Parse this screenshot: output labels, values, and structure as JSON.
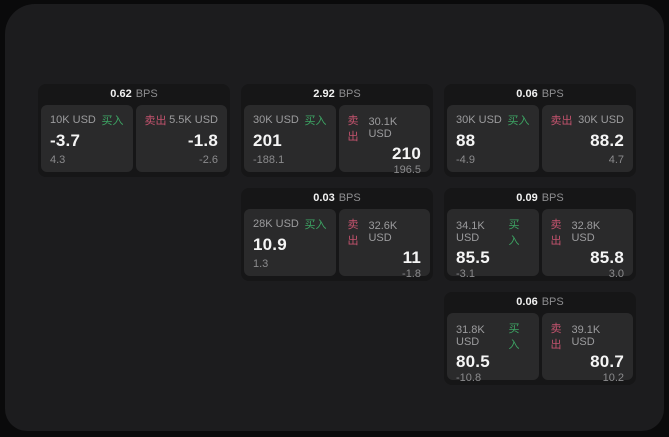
{
  "labels": {
    "bps_unit": "BPS",
    "buy": "买入",
    "sell": "卖出"
  },
  "colors": {
    "page_background": "#0a0a0b",
    "window_background": "#1c1c1e",
    "card_background": "#161617",
    "panel_background": "#2a2a2b",
    "buy_green": "#3da564",
    "sell_red": "#c4536e",
    "text_primary": "#f5f5f5",
    "text_secondary": "#9c9c9e"
  },
  "cards": [
    {
      "bps": "0.62",
      "buy": {
        "amount": "10K USD",
        "price": "-3.7",
        "change": "4.3"
      },
      "sell": {
        "amount": "5.5K USD",
        "price": "-1.8",
        "change": "-2.6"
      }
    },
    {
      "bps": "2.92",
      "buy": {
        "amount": "30K USD",
        "price": "201",
        "change": "-188.1"
      },
      "sell": {
        "amount": "30.1K USD",
        "price": "210",
        "change": "196.5"
      }
    },
    {
      "bps": "0.06",
      "buy": {
        "amount": "30K USD",
        "price": "88",
        "change": "-4.9"
      },
      "sell": {
        "amount": "30K USD",
        "price": "88.2",
        "change": "4.7"
      }
    },
    {
      "bps": "0.03",
      "buy": {
        "amount": "28K USD",
        "price": "10.9",
        "change": "1.3"
      },
      "sell": {
        "amount": "32.6K USD",
        "price": "11",
        "change": "-1.8"
      }
    },
    {
      "bps": "0.09",
      "buy": {
        "amount": "34.1K USD",
        "price": "85.5",
        "change": "-3.1"
      },
      "sell": {
        "amount": "32.8K USD",
        "price": "85.8",
        "change": "3.0"
      }
    },
    {
      "bps": "0.06",
      "buy": {
        "amount": "31.8K USD",
        "price": "80.5",
        "change": "-10.8"
      },
      "sell": {
        "amount": "39.1K USD",
        "price": "80.7",
        "change": "10.2"
      }
    }
  ]
}
